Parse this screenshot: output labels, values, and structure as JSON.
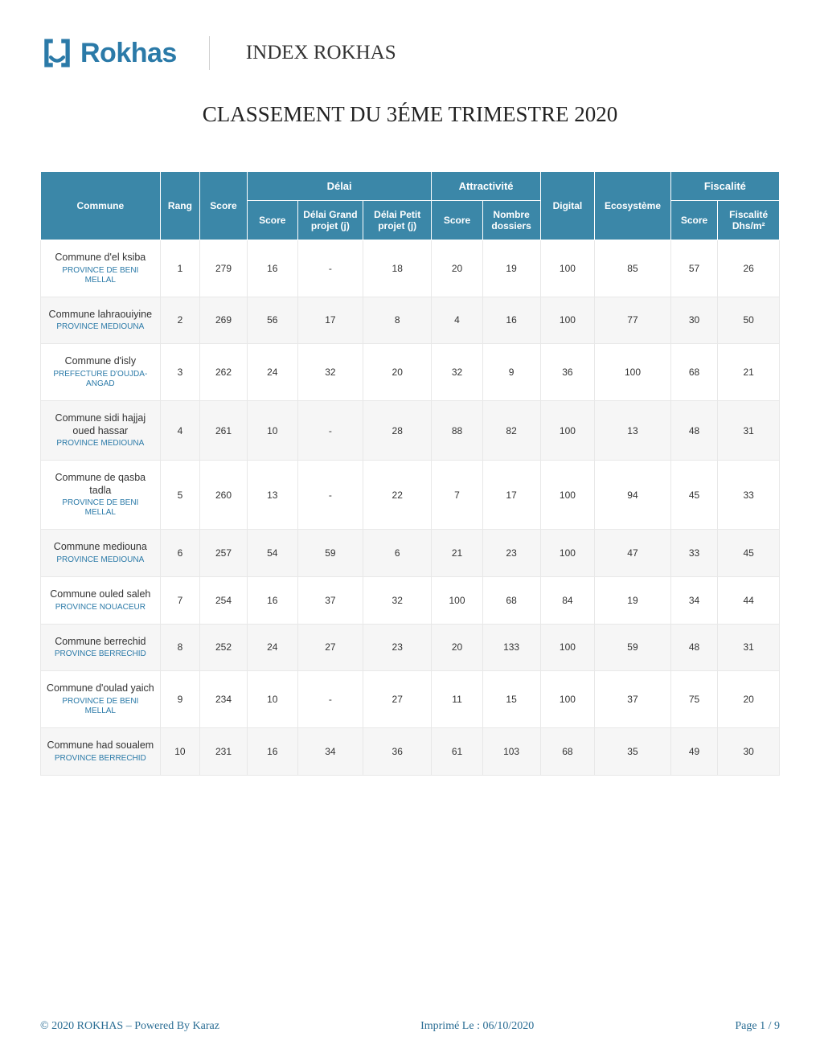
{
  "logo": {
    "brand_text": "Rokhas"
  },
  "header": {
    "index_label": "INDEX ROKHAS",
    "main_title": "CLASSEMENT DU 3ÉME TRIMESTRE 2020"
  },
  "colors": {
    "header_bg": "#3b87a8",
    "header_fg": "#ffffff",
    "row_even_bg": "#f6f6f6",
    "row_odd_bg": "#ffffff",
    "border": "#e8e8e8",
    "brand": "#2b7aa8",
    "footer_text": "#2a6d94"
  },
  "table": {
    "col_widths_pct": [
      16.5,
      5.5,
      6.5,
      7.0,
      9.0,
      9.5,
      7.0,
      8.0,
      7.5,
      10.5,
      6.5,
      8.5
    ],
    "header_font_size": 12,
    "body_font_size": 12,
    "columns": {
      "commune": "Commune",
      "rang": "Rang",
      "score": "Score",
      "delai_group": "Délai",
      "delai_score": "Score",
      "delai_grand": "Délai Grand projet (j)",
      "delai_petit": "Délai Petit projet (j)",
      "attract_group": "Attractivité",
      "attract_score": "Score",
      "attract_nb": "Nombre dossiers",
      "digital": "Digital",
      "ecosysteme": "Ecosystème",
      "fisc_group": "Fiscalité",
      "fisc_score": "Score",
      "fisc_dhs": "Fiscalité Dhs/m²"
    },
    "rows": [
      {
        "commune": "Commune d'el ksiba",
        "province": "PROVINCE DE BENI MELLAL",
        "rang": "1",
        "score": "279",
        "d_score": "16",
        "d_grand": "-",
        "d_petit": "18",
        "a_score": "20",
        "a_nb": "19",
        "digital": "100",
        "eco": "85",
        "f_score": "57",
        "f_dhs": "26"
      },
      {
        "commune": "Commune lahraouiyine",
        "province": "PROVINCE MEDIOUNA",
        "rang": "2",
        "score": "269",
        "d_score": "56",
        "d_grand": "17",
        "d_petit": "8",
        "a_score": "4",
        "a_nb": "16",
        "digital": "100",
        "eco": "77",
        "f_score": "30",
        "f_dhs": "50"
      },
      {
        "commune": "Commune d'isly",
        "province": "PREFECTURE D'OUJDA-ANGAD",
        "rang": "3",
        "score": "262",
        "d_score": "24",
        "d_grand": "32",
        "d_petit": "20",
        "a_score": "32",
        "a_nb": "9",
        "digital": "36",
        "eco": "100",
        "f_score": "68",
        "f_dhs": "21"
      },
      {
        "commune": "Commune sidi hajjaj oued hassar",
        "province": "PROVINCE MEDIOUNA",
        "rang": "4",
        "score": "261",
        "d_score": "10",
        "d_grand": "-",
        "d_petit": "28",
        "a_score": "88",
        "a_nb": "82",
        "digital": "100",
        "eco": "13",
        "f_score": "48",
        "f_dhs": "31"
      },
      {
        "commune": "Commune de qasba tadla",
        "province": "PROVINCE DE BENI MELLAL",
        "rang": "5",
        "score": "260",
        "d_score": "13",
        "d_grand": "-",
        "d_petit": "22",
        "a_score": "7",
        "a_nb": "17",
        "digital": "100",
        "eco": "94",
        "f_score": "45",
        "f_dhs": "33"
      },
      {
        "commune": "Commune mediouna",
        "province": "PROVINCE MEDIOUNA",
        "rang": "6",
        "score": "257",
        "d_score": "54",
        "d_grand": "59",
        "d_petit": "6",
        "a_score": "21",
        "a_nb": "23",
        "digital": "100",
        "eco": "47",
        "f_score": "33",
        "f_dhs": "45"
      },
      {
        "commune": "Commune ouled saleh",
        "province": "PROVINCE NOUACEUR",
        "rang": "7",
        "score": "254",
        "d_score": "16",
        "d_grand": "37",
        "d_petit": "32",
        "a_score": "100",
        "a_nb": "68",
        "digital": "84",
        "eco": "19",
        "f_score": "34",
        "f_dhs": "44"
      },
      {
        "commune": "Commune berrechid",
        "province": "PROVINCE BERRECHID",
        "rang": "8",
        "score": "252",
        "d_score": "24",
        "d_grand": "27",
        "d_petit": "23",
        "a_score": "20",
        "a_nb": "133",
        "digital": "100",
        "eco": "59",
        "f_score": "48",
        "f_dhs": "31"
      },
      {
        "commune": "Commune d'oulad yaich",
        "province": "PROVINCE DE BENI MELLAL",
        "rang": "9",
        "score": "234",
        "d_score": "10",
        "d_grand": "-",
        "d_petit": "27",
        "a_score": "11",
        "a_nb": "15",
        "digital": "100",
        "eco": "37",
        "f_score": "75",
        "f_dhs": "20"
      },
      {
        "commune": "Commune had soualem",
        "province": "PROVINCE BERRECHID",
        "rang": "10",
        "score": "231",
        "d_score": "16",
        "d_grand": "34",
        "d_petit": "36",
        "a_score": "61",
        "a_nb": "103",
        "digital": "68",
        "eco": "35",
        "f_score": "49",
        "f_dhs": "30"
      }
    ]
  },
  "footer": {
    "copyright": "© 2020 ROKHAS – Powered By Karaz",
    "printed": "Imprimé Le : 06/10/2020",
    "page": "Page 1 / 9"
  }
}
